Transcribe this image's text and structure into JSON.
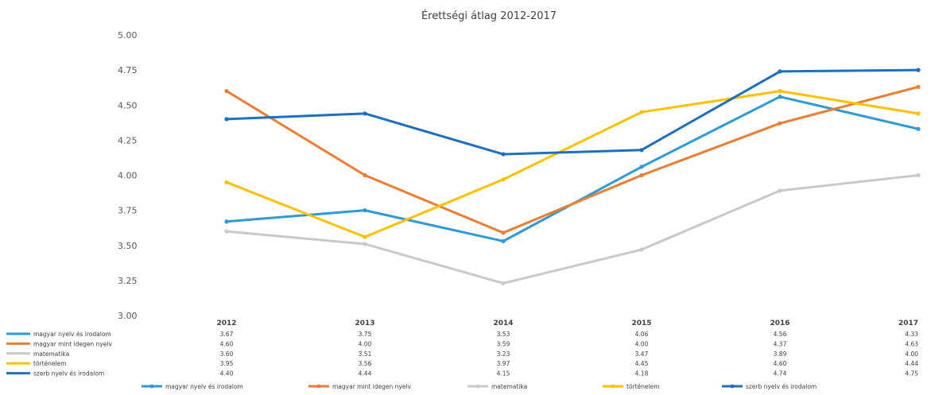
{
  "chart_data": {
    "type": "line",
    "title": "Érettségi átlag 2012-2017",
    "xlabel": "",
    "ylabel": "",
    "ylim": [
      3.0,
      5.0
    ],
    "yticks": [
      "3.00",
      "3.25",
      "3.50",
      "3.75",
      "4.00",
      "4.25",
      "4.50",
      "4.75",
      "5.00"
    ],
    "categories": [
      "2012",
      "2013",
      "2014",
      "2015",
      "2016",
      "2017"
    ],
    "grid": false,
    "legend_position": "bottom",
    "series": [
      {
        "name": "magyar nyelv és irodalom",
        "color": "#2e9bd6",
        "values": [
          3.67,
          3.75,
          3.53,
          4.06,
          4.56,
          4.33
        ],
        "labels": [
          "3.67",
          "3.75",
          "3.53",
          "4.06",
          "4.56",
          "4.33"
        ]
      },
      {
        "name": "magyar mint idegen nyelv",
        "color": "#ed7d31",
        "values": [
          4.6,
          4.0,
          3.59,
          4.0,
          4.37,
          4.63
        ],
        "labels": [
          "4.60",
          "4.00",
          "3.59",
          "4.00",
          "4.37",
          "4.63"
        ]
      },
      {
        "name": "matematika",
        "color": "#c9c9c9",
        "values": [
          3.6,
          3.51,
          3.23,
          3.47,
          3.89,
          4.0
        ],
        "labels": [
          "3.60",
          "3.51",
          "3.23",
          "3.47",
          "3.89",
          "4.00"
        ]
      },
      {
        "name": "történelem",
        "color": "#ffc000",
        "values": [
          3.95,
          3.56,
          3.97,
          4.45,
          4.6,
          4.44
        ],
        "labels": [
          "3.95",
          "3.56",
          "3.97",
          "4.45",
          "4.60",
          "4.44"
        ]
      },
      {
        "name": "szerb nyelv és irodalom",
        "color": "#1f6fbf",
        "values": [
          4.4,
          4.44,
          4.15,
          4.18,
          4.74,
          4.75
        ],
        "labels": [
          "4.40",
          "4.44",
          "4.15",
          "4.18",
          "4.74",
          "4.75"
        ]
      }
    ]
  }
}
